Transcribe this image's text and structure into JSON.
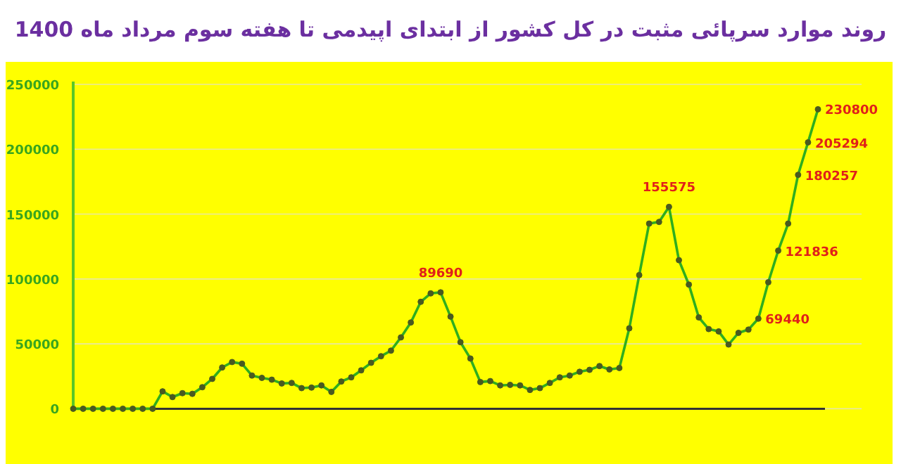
{
  "chart_data": {
    "type": "line",
    "title": "روند موارد سرپائی مثبت در کل کشور از ابتدای اپیدمی تا هفته سوم مرداد ماه 1400",
    "categories": [
      null,
      null,
      null,
      null,
      null,
      null,
      null,
      null,
      null,
      null,
      null,
      null,
      null,
      null,
      null,
      null,
      null,
      null,
      null,
      null,
      null,
      null,
      null,
      null,
      null,
      null,
      null,
      null,
      null,
      null,
      null,
      null,
      null,
      null,
      null,
      null,
      null,
      null,
      null,
      null,
      null,
      null,
      null,
      null,
      null,
      null,
      null,
      null,
      null,
      null,
      null,
      null,
      null,
      null,
      null,
      null,
      null,
      null,
      null,
      null,
      null,
      null,
      null,
      null,
      null,
      null,
      null,
      null,
      null,
      null,
      null,
      null,
      null,
      null,
      null,
      null
    ],
    "series": [
      {
        "color": "#2fae1e",
        "values": [
          0,
          0,
          0,
          0,
          0,
          0,
          0,
          0,
          0,
          13400,
          9000,
          12000,
          11500,
          16600,
          23000,
          31800,
          36000,
          34700,
          25600,
          23800,
          22400,
          19500,
          19900,
          15900,
          16300,
          18000,
          13000,
          21000,
          24200,
          29600,
          35400,
          40500,
          44800,
          55000,
          66500,
          82400,
          88900,
          89690,
          71000,
          51300,
          38700,
          20600,
          21300,
          18000,
          18400,
          18000,
          14500,
          15900,
          19900,
          24200,
          25600,
          28500,
          30000,
          32900,
          30300,
          31400,
          62000,
          103000,
          142700,
          144000,
          155575,
          114500,
          95700,
          70400,
          61400,
          59600,
          49500,
          58500,
          61000,
          69440,
          97500,
          121836,
          142700,
          180257,
          205294,
          230800
        ],
        "value_labels": [
          null,
          null,
          null,
          null,
          null,
          null,
          null,
          null,
          null,
          null,
          null,
          null,
          null,
          null,
          null,
          null,
          null,
          null,
          null,
          null,
          null,
          null,
          null,
          null,
          null,
          null,
          null,
          null,
          null,
          null,
          null,
          null,
          null,
          null,
          null,
          null,
          null,
          "89690",
          null,
          null,
          null,
          null,
          null,
          null,
          null,
          null,
          null,
          null,
          null,
          null,
          null,
          null,
          null,
          null,
          null,
          null,
          null,
          null,
          null,
          null,
          "155575",
          null,
          null,
          null,
          null,
          null,
          null,
          null,
          null,
          "69440",
          null,
          "121836",
          null,
          "180257",
          "205294",
          "230800"
        ]
      }
    ],
    "ylim": [
      0,
      250000
    ],
    "yticks": [
      0,
      50000,
      100000,
      150000,
      200000,
      250000
    ],
    "grid": "y",
    "marker": "circle",
    "legend": false
  }
}
